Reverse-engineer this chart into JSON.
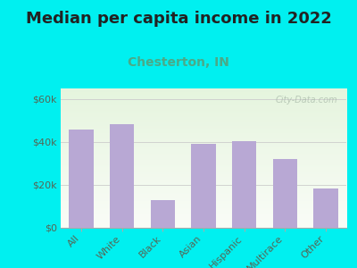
{
  "title": "Median per capita income in 2022",
  "subtitle": "Chesterton, IN",
  "categories": [
    "All",
    "White",
    "Black",
    "Asian",
    "Hispanic",
    "Multirace",
    "Other"
  ],
  "values": [
    46000,
    48500,
    13000,
    39000,
    40500,
    32000,
    18500
  ],
  "bar_color": "#b8a8d4",
  "background_outer": "#00f0f0",
  "title_color": "#222222",
  "subtitle_color": "#4aaa88",
  "tick_color": "#556655",
  "ytick_label_color": "#556655",
  "ylim": [
    0,
    65000
  ],
  "yticks": [
    0,
    20000,
    40000,
    60000
  ],
  "ytick_labels": [
    "$0",
    "$20k",
    "$40k",
    "$60k"
  ],
  "watermark": "City-Data.com",
  "title_fontsize": 13,
  "subtitle_fontsize": 10,
  "tick_fontsize": 8
}
